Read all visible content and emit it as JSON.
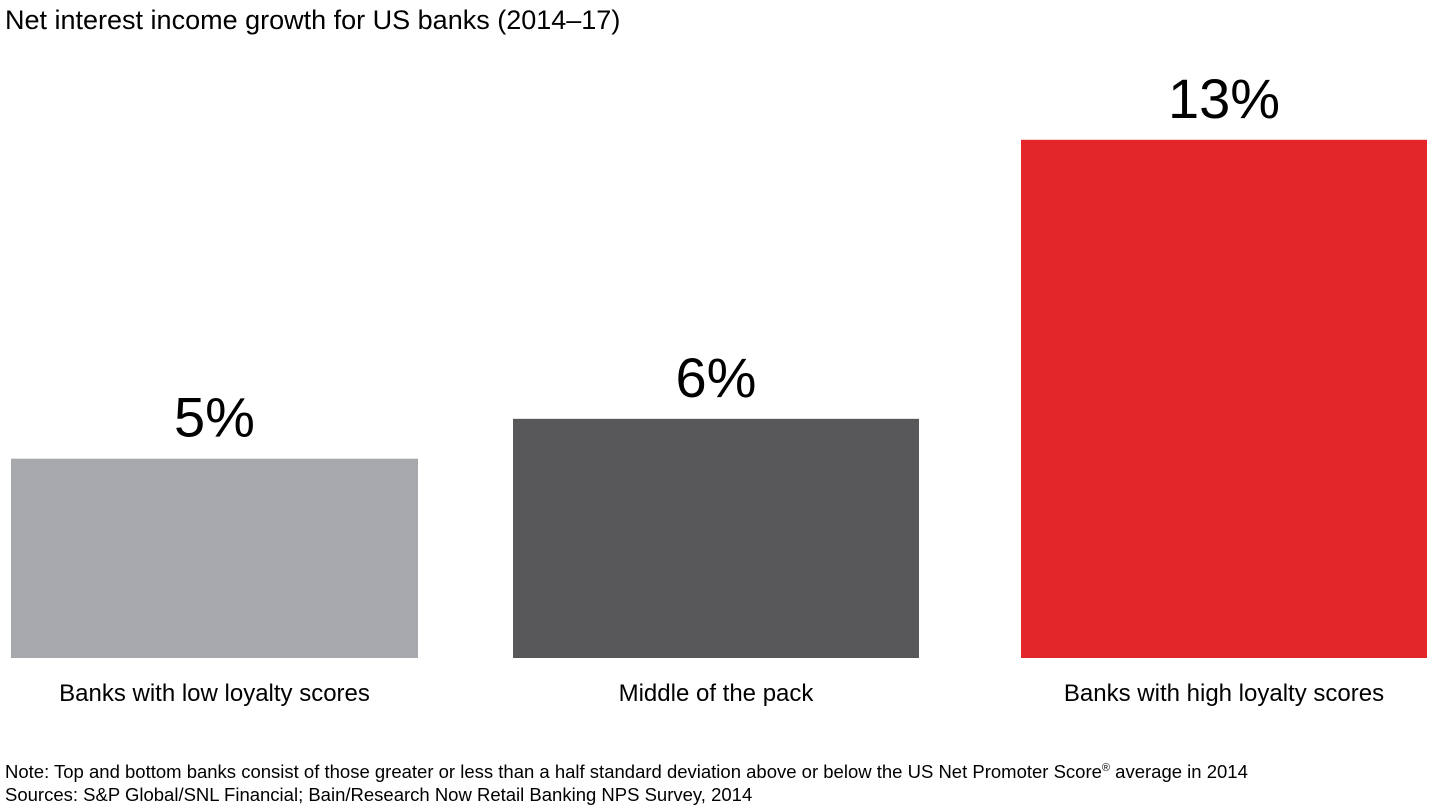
{
  "chart_data": {
    "type": "bar",
    "title": "Net interest income growth for US banks (2014–17)",
    "categories": [
      "Banks with low loyalty scores",
      "Middle of the pack",
      "Banks with high loyalty scores"
    ],
    "values": [
      5,
      6,
      13
    ],
    "value_labels": [
      "5%",
      "6%",
      "13%"
    ],
    "unit": "%",
    "ylim": [
      0,
      14.5
    ],
    "bar_colors": [
      "#a7a8ab",
      "#58585a",
      "#e3262a"
    ],
    "grid": false,
    "axes_visible": false
  },
  "notes": {
    "note_prefix": "Note: Top and bottom banks consist of those greater or less than a half standard deviation above or below the US Net Promoter Score",
    "note_mark": "®",
    "note_suffix": " average in 2014",
    "sources": "Sources: S&P Global/SNL Financial; Bain/Research Now Retail Banking NPS Survey, 2014"
  }
}
